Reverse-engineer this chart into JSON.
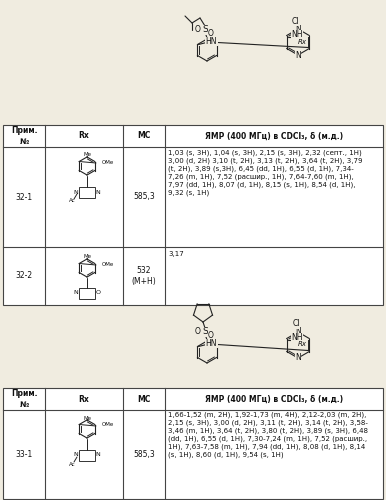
{
  "bg_color": "#f0ece0",
  "table_bg": "#ffffff",
  "border_color": "#444444",
  "text_color": "#111111",
  "table1_rows": [
    {
      "id": "32-1",
      "mc": "585,3",
      "nmr": "1,03 (s, 3H), 1,04 (s, 3H), 2,15 (s, 3H), 2,32 (септ., 1H)\n3,00 (d, 2H) 3,10 (t, 2H), 3,13 (t, 2H), 3,64 (t, 2H), 3,79\n(t, 2H), 3,89 (s,3H), 6,45 (dd, 1H), 6,55 (d, 1H), 7,34-\n7,26 (m, 1H), 7,52 (расшир., 1H), 7,64-7,60 (m, 1H),\n7,97 (dd, 1H), 8,07 (d, 1H), 8,15 (s, 1H), 8,54 (d, 1H),\n9,32 (s, 1H)"
    },
    {
      "id": "32-2",
      "mc": "532\n(M+H)",
      "nmr": "3,17"
    }
  ],
  "table2_rows": [
    {
      "id": "33-1",
      "mc": "585,3",
      "nmr": "1,66-1,52 (m, 2H), 1,92-1,73 (m, 4H), 2,12-2,03 (m, 2H),\n2,15 (s, 3H), 3,00 (d, 2H), 3,11 (t, 2H), 3,14 (t, 2H), 3,58-\n3,46 (m, 1H), 3,64 (t, 2H), 3,80 (t, 2H), 3,89 (s, 3H), 6,48\n(dd, 1H), 6,55 (d, 1H), 7,30-7,24 (m, 1H), 7,52 (расшир.,\n1H), 7,63-7,58 (m, 1H), 7,94 (dd, 1H), 8,08 (d, 1H), 8,14\n(s, 1H), 8,60 (d, 1H), 9,54 (s, 1H)"
    }
  ]
}
